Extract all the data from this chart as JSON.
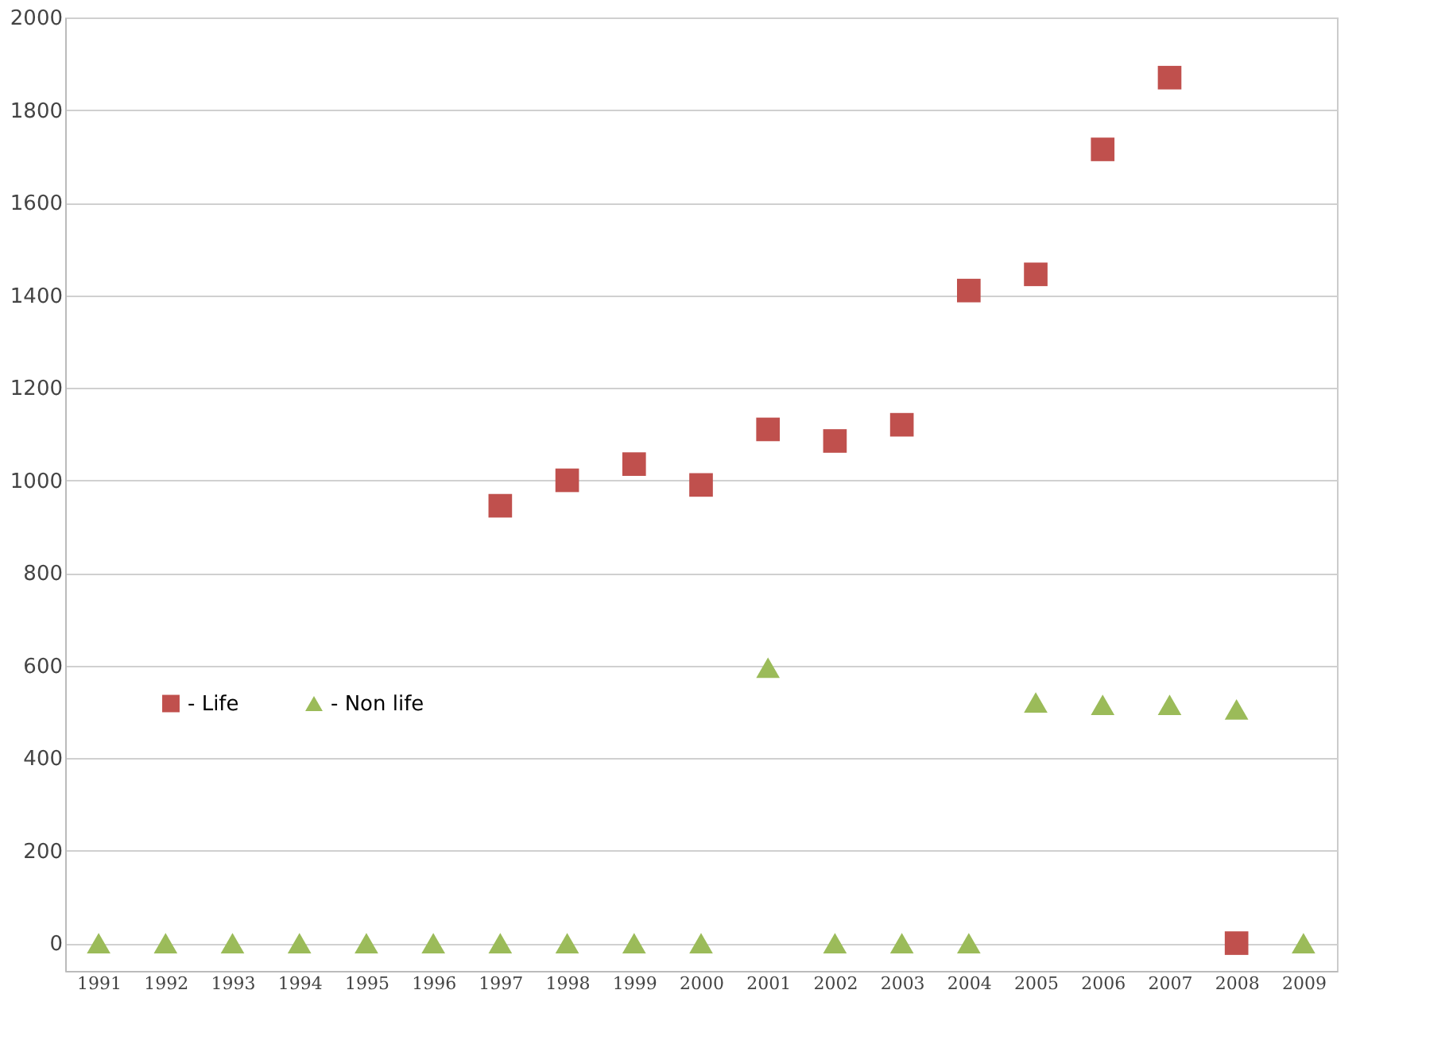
{
  "chart_data": {
    "type": "scatter",
    "categories": [
      "1991",
      "1992",
      "1993",
      "1994",
      "1995",
      "1996",
      "1997",
      "1998",
      "1999",
      "2000",
      "2001",
      "2002",
      "2003",
      "2004",
      "2005",
      "2006",
      "2007",
      "2008",
      "2009"
    ],
    "series": [
      {
        "name": "- Life",
        "color": "#c0504d",
        "marker": "square",
        "values": [
          null,
          null,
          null,
          null,
          null,
          null,
          945,
          1000,
          1035,
          990,
          1110,
          1085,
          1120,
          1410,
          1445,
          1715,
          1870,
          0,
          null
        ]
      },
      {
        "name": "- Non life",
        "color": "#9bbb59",
        "marker": "triangle",
        "values": [
          0,
          0,
          0,
          0,
          0,
          0,
          0,
          0,
          0,
          0,
          595,
          0,
          0,
          0,
          520,
          515,
          515,
          505,
          0
        ]
      }
    ],
    "ylim": [
      -60,
      2000
    ],
    "yticks": [
      0,
      200,
      400,
      600,
      800,
      1000,
      1200,
      1400,
      1600,
      1800,
      2000
    ],
    "grid": "y",
    "legend": "left"
  }
}
